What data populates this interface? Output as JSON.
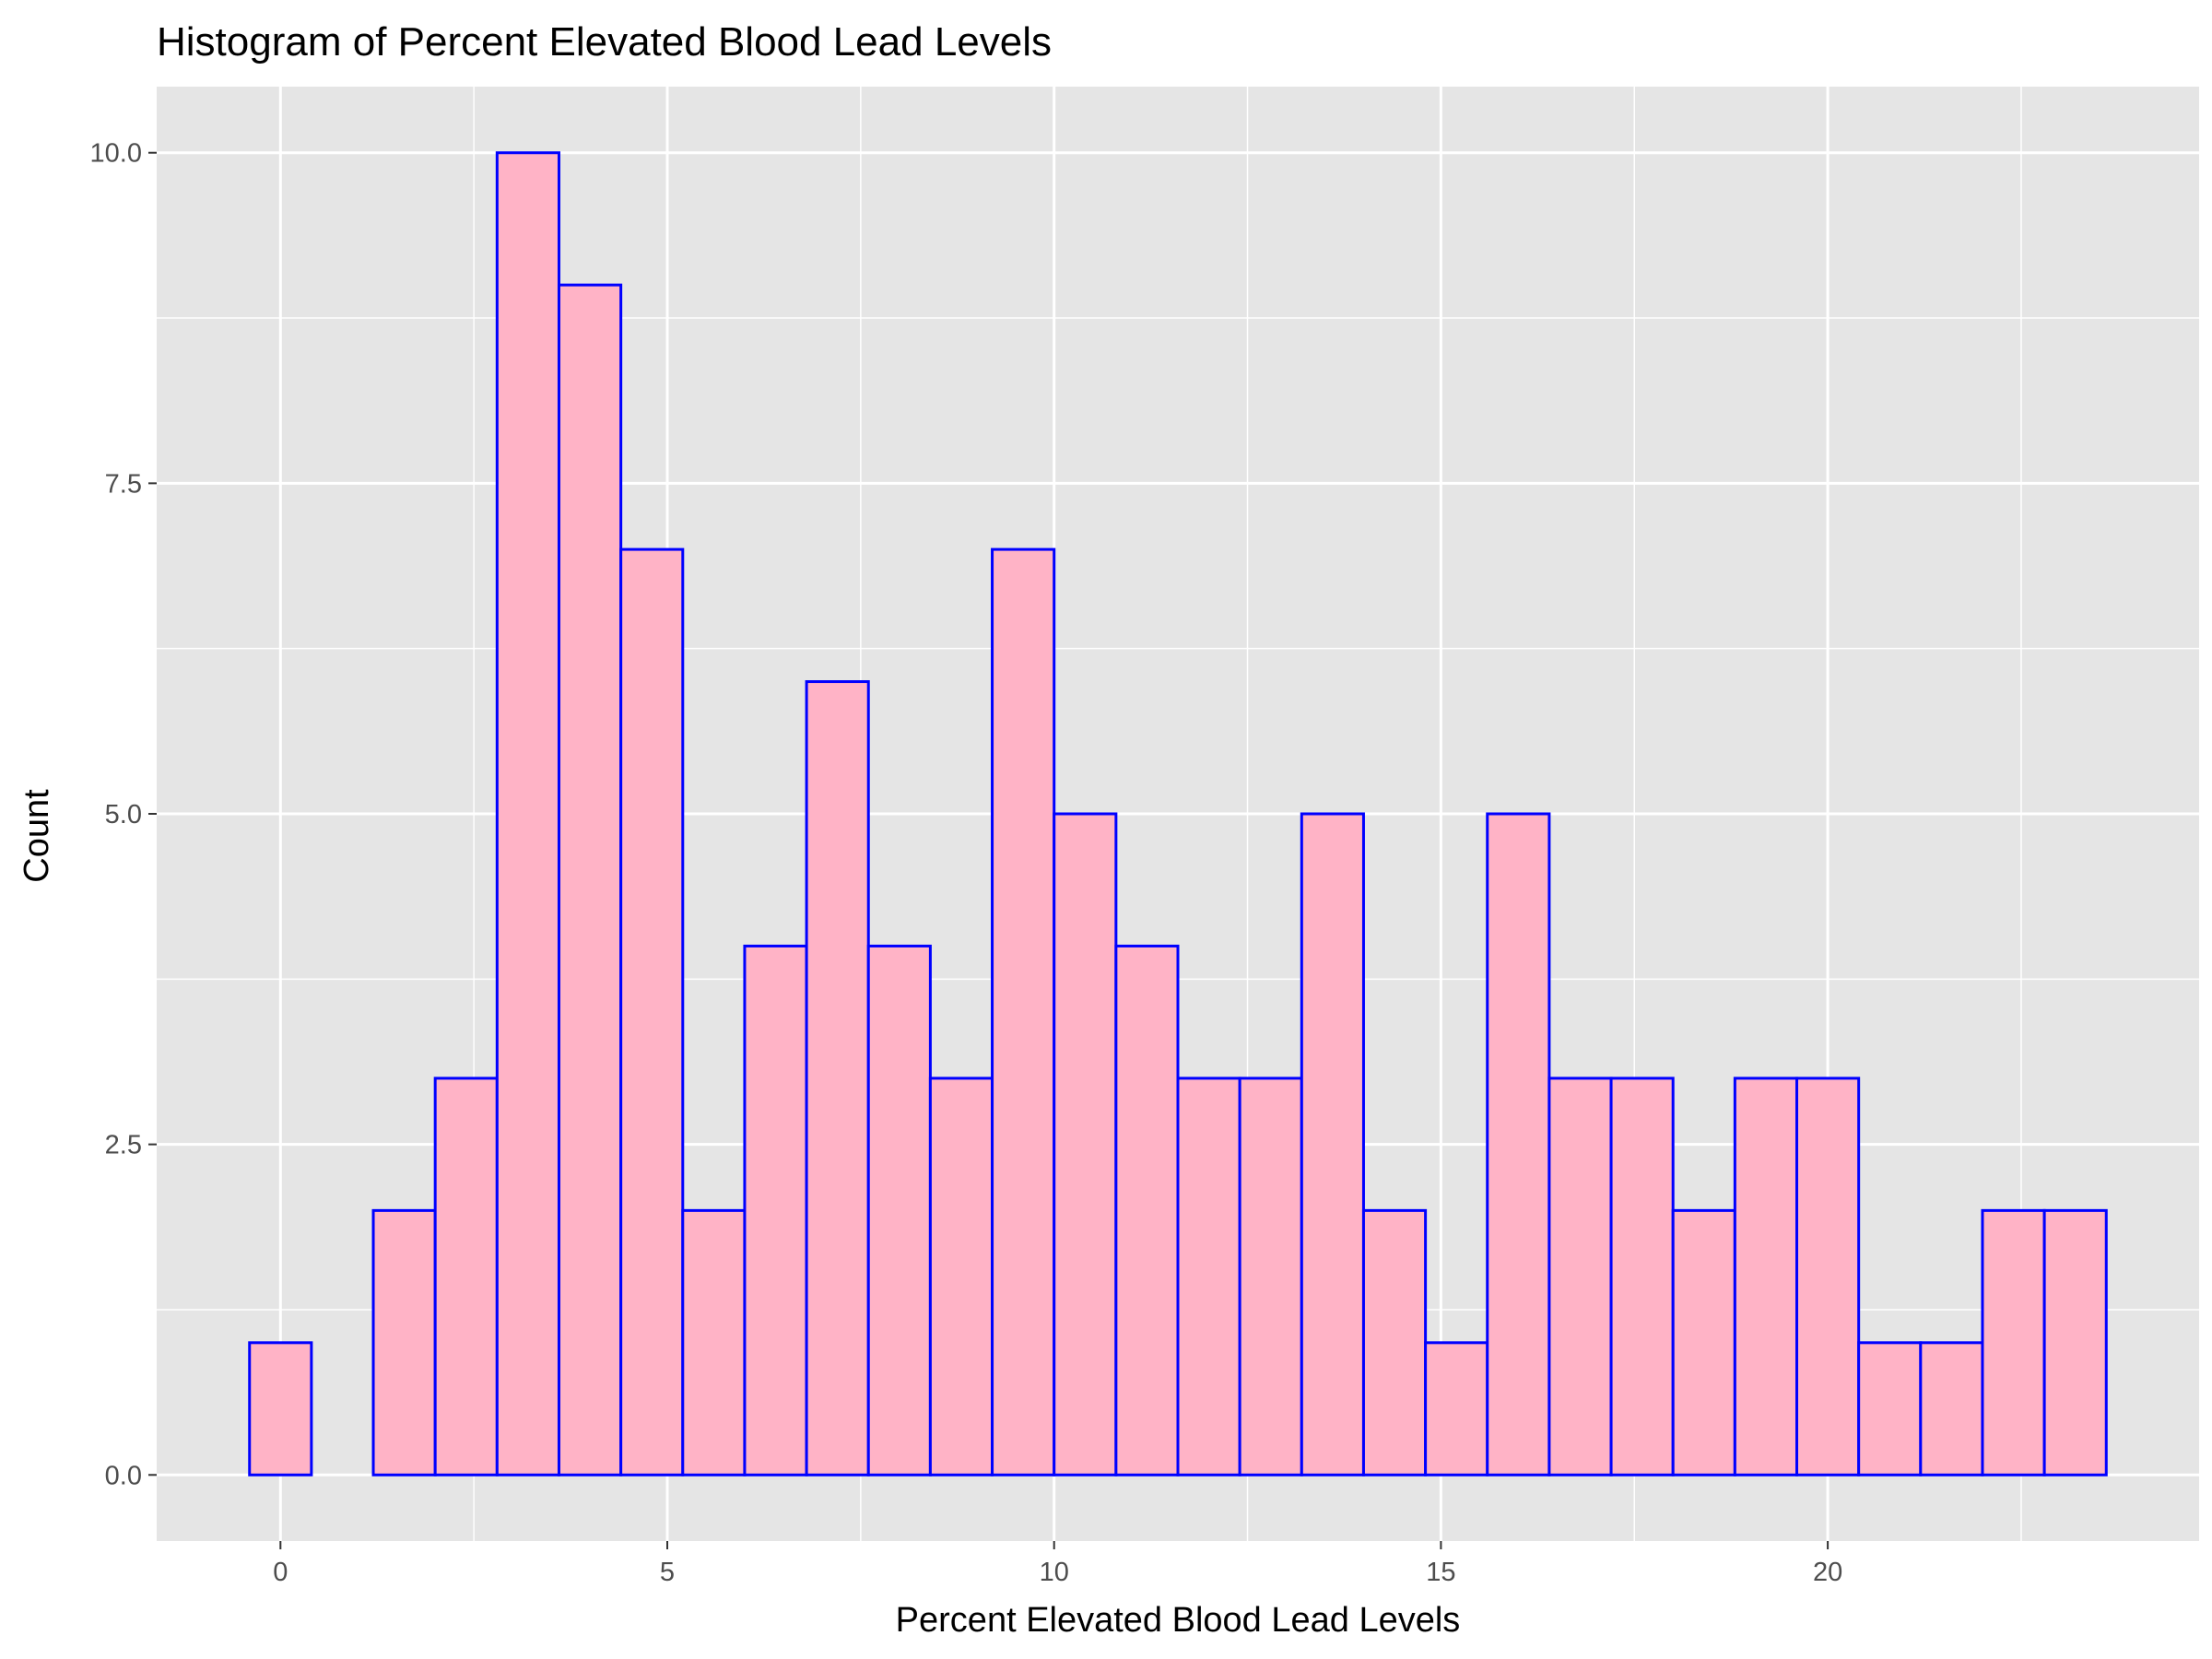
{
  "chart_data": {
    "type": "bar",
    "subtype": "histogram",
    "title": "Histogram of Percent Elevated Blood Lead Levels",
    "xlabel": "Percent Elevated Blood Lead Levels",
    "ylabel": "Count",
    "bin_width": 0.8,
    "bins": [
      {
        "x0": -0.4,
        "x1": 0.4,
        "count": 1
      },
      {
        "x0": 0.4,
        "x1": 1.2,
        "count": 0
      },
      {
        "x0": 1.2,
        "x1": 2.0,
        "count": 2
      },
      {
        "x0": 2.0,
        "x1": 2.8,
        "count": 3
      },
      {
        "x0": 2.8,
        "x1": 3.6,
        "count": 10
      },
      {
        "x0": 3.6,
        "x1": 4.4,
        "count": 9
      },
      {
        "x0": 4.4,
        "x1": 5.2,
        "count": 7
      },
      {
        "x0": 5.2,
        "x1": 6.0,
        "count": 2
      },
      {
        "x0": 6.0,
        "x1": 6.8,
        "count": 4
      },
      {
        "x0": 6.8,
        "x1": 7.6,
        "count": 6
      },
      {
        "x0": 7.6,
        "x1": 8.4,
        "count": 4
      },
      {
        "x0": 8.4,
        "x1": 9.2,
        "count": 3
      },
      {
        "x0": 9.2,
        "x1": 10.0,
        "count": 7
      },
      {
        "x0": 10.0,
        "x1": 10.8,
        "count": 5
      },
      {
        "x0": 10.8,
        "x1": 11.6,
        "count": 4
      },
      {
        "x0": 11.6,
        "x1": 12.4,
        "count": 3
      },
      {
        "x0": 12.4,
        "x1": 13.2,
        "count": 3
      },
      {
        "x0": 13.2,
        "x1": 14.0,
        "count": 5
      },
      {
        "x0": 14.0,
        "x1": 14.8,
        "count": 2
      },
      {
        "x0": 14.8,
        "x1": 15.6,
        "count": 1
      },
      {
        "x0": 15.6,
        "x1": 16.4,
        "count": 5
      },
      {
        "x0": 16.4,
        "x1": 17.2,
        "count": 3
      },
      {
        "x0": 17.2,
        "x1": 18.0,
        "count": 3
      },
      {
        "x0": 18.0,
        "x1": 18.8,
        "count": 2
      },
      {
        "x0": 18.8,
        "x1": 19.6,
        "count": 3
      },
      {
        "x0": 19.6,
        "x1": 20.4,
        "count": 3
      },
      {
        "x0": 20.4,
        "x1": 21.2,
        "count": 1
      },
      {
        "x0": 21.2,
        "x1": 22.0,
        "count": 1
      },
      {
        "x0": 22.0,
        "x1": 22.8,
        "count": 2
      },
      {
        "x0": 22.8,
        "x1": 23.6,
        "count": 2
      }
    ],
    "xlim": [
      -1.6,
      24.8
    ],
    "ylim": [
      -0.5,
      10.5
    ],
    "x_ticks": [
      0,
      5,
      10,
      15,
      20
    ],
    "x_tick_labels": [
      "0",
      "5",
      "10",
      "15",
      "20"
    ],
    "y_ticks": [
      0,
      2.5,
      5,
      7.5,
      10
    ],
    "y_tick_labels": [
      "0.0",
      "2.5",
      "5.0",
      "7.5",
      "10.0"
    ],
    "grid": true,
    "colors": {
      "fill": "#FFB3C6",
      "outline": "#0000FF",
      "panel": "#E5E5E5",
      "grid": "#FFFFFF",
      "background": "#FFFFFF"
    }
  }
}
